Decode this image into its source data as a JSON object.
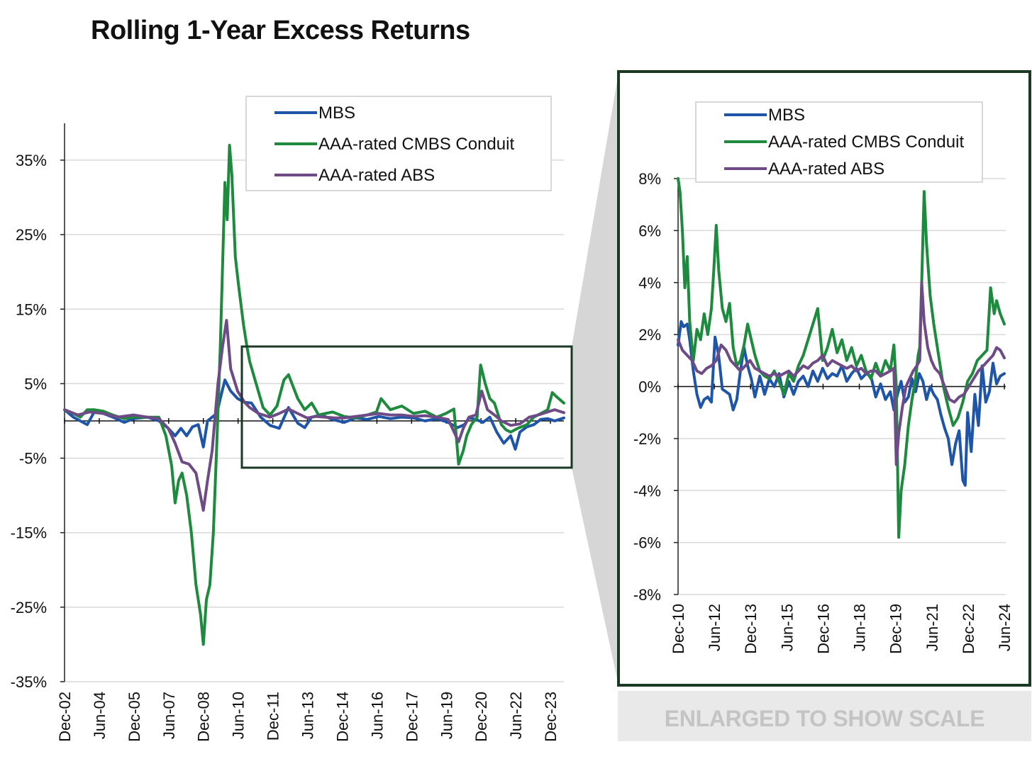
{
  "title": "Rolling 1-Year Excess Returns",
  "caption": "ENLARGED TO SHOW SCALE",
  "colors": {
    "mbs": "#1f55a8",
    "cmbs": "#1d8a3e",
    "abs": "#6e4a86",
    "frame": "#1b3a24",
    "grid": "#d9d9d9",
    "wedge": "#d6d6d6"
  },
  "chart_data": [
    {
      "type": "line",
      "title": "Rolling 1-Year Excess Returns",
      "xlabel": "",
      "ylabel": "",
      "ylim": [
        -35,
        35
      ],
      "y_unit": "%",
      "y_ticks": [
        "35%",
        "25%",
        "15%",
        "5%",
        "-5%",
        "-15%",
        "-25%",
        "-35%"
      ],
      "y_tick_values": [
        35,
        25,
        15,
        5,
        -5,
        -15,
        -25,
        -35
      ],
      "xlim": [
        2002.92,
        2024.5
      ],
      "x_ticks": [
        "Dec-02",
        "Jun-04",
        "Dec-05",
        "Jun-07",
        "Dec-08",
        "Jun-10",
        "Dec-11",
        "Jun-13",
        "Dec-14",
        "Jun-16",
        "Dec-17",
        "Jun-19",
        "Dec-20",
        "Jun-22",
        "Dec-23"
      ],
      "x_tick_values": [
        2002.92,
        2004.42,
        2005.92,
        2007.42,
        2008.92,
        2010.42,
        2011.92,
        2013.42,
        2014.92,
        2016.42,
        2017.92,
        2019.42,
        2020.92,
        2022.42,
        2023.92
      ],
      "legend_position": "top-right",
      "grid": true,
      "series": [
        {
          "name": "MBS",
          "x": [
            2002.92,
            2003.3,
            2003.6,
            2003.9,
            2004.2,
            2004.6,
            2005.0,
            2005.5,
            2005.9,
            2006.5,
            2007.0,
            2007.4,
            2007.7,
            2007.95,
            2008.2,
            2008.45,
            2008.7,
            2008.92,
            2009.1,
            2009.3,
            2009.5,
            2009.65,
            2009.85,
            2010.1,
            2010.4,
            2010.7,
            2011.0,
            2011.4,
            2011.8,
            2012.2,
            2012.6,
            2013.0,
            2013.3,
            2013.6,
            2014.0,
            2014.5,
            2015.0,
            2015.5,
            2016.0,
            2016.5,
            2017.0,
            2017.5,
            2018.0,
            2018.5,
            2019.0,
            2019.5,
            2019.9,
            2020.2,
            2020.4,
            2020.7,
            2021.0,
            2021.3,
            2021.6,
            2021.9,
            2022.2,
            2022.4,
            2022.6,
            2022.9,
            2023.2,
            2023.5,
            2023.8,
            2024.1,
            2024.5
          ],
          "values": [
            1.5,
            0.5,
            0.0,
            -0.5,
            1.2,
            1.0,
            0.5,
            -0.2,
            0.3,
            0.5,
            0.0,
            -1.0,
            -2.0,
            -1.0,
            -2.0,
            -0.8,
            -0.5,
            -3.5,
            0.0,
            0.5,
            1.0,
            3.0,
            5.5,
            4.0,
            3.0,
            2.5,
            2.4,
            0.5,
            -0.6,
            -1.0,
            1.8,
            -0.3,
            -0.9,
            0.5,
            0.8,
            0.2,
            -0.2,
            0.4,
            0.2,
            0.6,
            0.3,
            0.5,
            0.4,
            0.0,
            0.3,
            -0.2,
            -0.9,
            -0.5,
            0.4,
            0.2,
            -0.2,
            0.5,
            -1.5,
            -3.0,
            -2.0,
            -3.8,
            -1.5,
            -0.8,
            -0.5,
            0.2,
            0.3,
            0.0,
            0.4
          ]
        },
        {
          "name": "AAA-rated CMBS Conduit",
          "x": [
            2002.92,
            2003.3,
            2003.6,
            2003.9,
            2004.2,
            2004.6,
            2005.0,
            2005.5,
            2005.9,
            2006.5,
            2007.0,
            2007.3,
            2007.55,
            2007.7,
            2007.85,
            2008.0,
            2008.2,
            2008.4,
            2008.6,
            2008.8,
            2008.92,
            2009.05,
            2009.2,
            2009.35,
            2009.5,
            2009.65,
            2009.85,
            2009.95,
            2010.05,
            2010.15,
            2010.3,
            2010.45,
            2010.65,
            2010.8,
            2010.92,
            2011.2,
            2011.5,
            2011.8,
            2012.1,
            2012.4,
            2012.6,
            2013.0,
            2013.3,
            2013.6,
            2013.9,
            2014.2,
            2014.5,
            2015.0,
            2015.5,
            2016.0,
            2016.4,
            2016.6,
            2017.0,
            2017.5,
            2018.0,
            2018.5,
            2019.0,
            2019.4,
            2019.75,
            2019.95,
            2020.15,
            2020.3,
            2020.5,
            2020.75,
            2020.9,
            2021.1,
            2021.3,
            2021.5,
            2021.8,
            2022.0,
            2022.2,
            2022.5,
            2022.9,
            2023.2,
            2023.5,
            2023.8,
            2024.0,
            2024.2,
            2024.5
          ],
          "values": [
            1.5,
            1.0,
            0.5,
            1.5,
            1.5,
            1.3,
            0.8,
            0.3,
            0.5,
            0.5,
            0.5,
            -2.0,
            -6.0,
            -11.0,
            -8.0,
            -7.0,
            -10.0,
            -15.0,
            -22.0,
            -26.0,
            -30.0,
            -24.0,
            -22.0,
            -15.0,
            -3.0,
            10.0,
            32.0,
            27.0,
            37.0,
            33.0,
            22.0,
            18.0,
            13.0,
            10.0,
            8.0,
            5.0,
            1.8,
            0.8,
            2.0,
            5.5,
            6.2,
            3.0,
            1.5,
            2.4,
            0.8,
            1.0,
            1.2,
            0.6,
            0.4,
            0.8,
            1.2,
            3.0,
            1.5,
            2.0,
            1.0,
            1.3,
            0.5,
            1.0,
            1.6,
            -5.8,
            -4.0,
            -2.0,
            -0.5,
            0.5,
            7.5,
            5.0,
            3.0,
            2.4,
            -0.5,
            -1.2,
            -1.5,
            -1.0,
            -0.5,
            0.5,
            1.0,
            1.5,
            3.8,
            3.2,
            2.4
          ]
        },
        {
          "name": "AAA-rated ABS",
          "x": [
            2002.92,
            2003.5,
            2004.0,
            2004.6,
            2005.2,
            2005.9,
            2006.5,
            2007.0,
            2007.4,
            2007.7,
            2008.0,
            2008.3,
            2008.6,
            2008.92,
            2009.1,
            2009.3,
            2009.55,
            2009.75,
            2009.92,
            2010.1,
            2010.4,
            2010.7,
            2010.92,
            2011.3,
            2011.8,
            2012.2,
            2012.6,
            2013.0,
            2013.4,
            2013.8,
            2014.2,
            2014.6,
            2015.0,
            2015.5,
            2016.0,
            2016.5,
            2017.0,
            2017.5,
            2018.0,
            2018.5,
            2019.0,
            2019.5,
            2019.95,
            2020.15,
            2020.4,
            2020.7,
            2020.95,
            2021.2,
            2021.5,
            2021.8,
            2022.2,
            2022.6,
            2023.0,
            2023.4,
            2023.8,
            2024.1,
            2024.5
          ],
          "values": [
            1.5,
            0.8,
            1.2,
            1.0,
            0.5,
            0.8,
            0.5,
            0.3,
            -1.0,
            -3.0,
            -5.5,
            -5.8,
            -7.0,
            -12.0,
            -8.0,
            -4.0,
            5.0,
            10.0,
            13.5,
            7.0,
            4.0,
            2.5,
            1.8,
            1.0,
            0.5,
            1.0,
            1.6,
            1.0,
            0.4,
            0.6,
            0.5,
            0.4,
            0.4,
            0.6,
            0.8,
            1.0,
            0.8,
            0.8,
            0.6,
            0.7,
            0.5,
            0.2,
            -2.8,
            -1.0,
            0.5,
            0.8,
            4.0,
            1.5,
            0.8,
            0.0,
            -0.6,
            -0.4,
            0.5,
            0.8,
            1.2,
            1.5,
            1.1
          ]
        }
      ]
    },
    {
      "type": "line",
      "title": "",
      "xlabel": "",
      "ylabel": "",
      "ylim": [
        -8,
        8
      ],
      "y_unit": "%",
      "y_ticks": [
        "8%",
        "6%",
        "4%",
        "2%",
        "0%",
        "-2%",
        "-4%",
        "-6%",
        "-8%"
      ],
      "y_tick_values": [
        8,
        6,
        4,
        2,
        0,
        -2,
        -4,
        -6,
        -8
      ],
      "xlim": [
        2010.92,
        2024.42
      ],
      "x_ticks": [
        "Dec-10",
        "Jun-12",
        "Dec-13",
        "Jun-15",
        "Dec-16",
        "Jun-18",
        "Dec-19",
        "Jun-21",
        "Dec-22",
        "Jun-24"
      ],
      "x_tick_values": [
        2010.92,
        2012.42,
        2013.92,
        2015.42,
        2016.92,
        2018.42,
        2019.92,
        2021.42,
        2022.92,
        2024.42
      ],
      "legend_position": "top-right",
      "grid": true,
      "series": [
        {
          "name": "MBS",
          "x": [
            2010.92,
            2011.05,
            2011.15,
            2011.3,
            2011.4,
            2011.55,
            2011.7,
            2011.85,
            2012.0,
            2012.15,
            2012.3,
            2012.45,
            2012.6,
            2012.75,
            2012.9,
            2013.05,
            2013.2,
            2013.35,
            2013.5,
            2013.65,
            2013.8,
            2013.95,
            2014.1,
            2014.3,
            2014.5,
            2014.7,
            2014.9,
            2015.1,
            2015.3,
            2015.5,
            2015.7,
            2015.9,
            2016.1,
            2016.3,
            2016.5,
            2016.7,
            2016.9,
            2017.1,
            2017.3,
            2017.5,
            2017.7,
            2017.9,
            2018.1,
            2018.3,
            2018.5,
            2018.7,
            2018.9,
            2019.1,
            2019.3,
            2019.5,
            2019.7,
            2019.85,
            2020.0,
            2020.15,
            2020.3,
            2020.45,
            2020.6,
            2020.75,
            2020.9,
            2021.05,
            2021.2,
            2021.35,
            2021.5,
            2021.65,
            2021.8,
            2021.95,
            2022.1,
            2022.25,
            2022.4,
            2022.55,
            2022.7,
            2022.8,
            2022.9,
            2023.05,
            2023.2,
            2023.35,
            2023.5,
            2023.65,
            2023.8,
            2023.95,
            2024.1,
            2024.25,
            2024.42
          ],
          "values": [
            1.6,
            2.5,
            2.3,
            2.4,
            1.8,
            0.6,
            -0.3,
            -0.8,
            -0.5,
            -0.4,
            -0.6,
            1.9,
            1.2,
            -0.1,
            -0.2,
            -0.3,
            -0.9,
            -0.5,
            0.6,
            1.5,
            0.8,
            0.3,
            -0.4,
            0.4,
            -0.3,
            0.3,
            0.0,
            0.5,
            -0.4,
            0.2,
            -0.3,
            0.2,
            0.4,
            0.0,
            0.6,
            0.2,
            0.7,
            0.3,
            0.5,
            0.4,
            0.8,
            0.2,
            0.5,
            0.7,
            0.3,
            0.5,
            0.4,
            -0.4,
            0.1,
            -0.5,
            -0.2,
            -0.9,
            -0.3,
            0.2,
            -0.6,
            -0.4,
            0.3,
            -0.2,
            0.5,
            0.2,
            -0.5,
            0.0,
            -0.3,
            -0.5,
            -1.1,
            -1.6,
            -2.0,
            -3.0,
            -2.2,
            -1.7,
            -3.6,
            -3.8,
            -1.0,
            -2.5,
            -0.3,
            -1.5,
            0.8,
            -0.6,
            -0.2,
            0.9,
            0.1,
            0.4,
            0.5
          ]
        },
        {
          "name": "AAA-rated CMBS Conduit",
          "x": [
            2010.92,
            2011.0,
            2011.1,
            2011.2,
            2011.3,
            2011.4,
            2011.55,
            2011.7,
            2011.85,
            2012.0,
            2012.15,
            2012.3,
            2012.4,
            2012.5,
            2012.6,
            2012.75,
            2012.9,
            2013.05,
            2013.2,
            2013.35,
            2013.5,
            2013.65,
            2013.8,
            2013.95,
            2014.1,
            2014.3,
            2014.5,
            2014.7,
            2014.9,
            2015.1,
            2015.3,
            2015.5,
            2015.7,
            2015.9,
            2016.1,
            2016.3,
            2016.5,
            2016.7,
            2016.9,
            2017.1,
            2017.3,
            2017.5,
            2017.7,
            2017.9,
            2018.1,
            2018.3,
            2018.5,
            2018.7,
            2018.9,
            2019.1,
            2019.3,
            2019.5,
            2019.7,
            2019.85,
            2019.95,
            2020.05,
            2020.15,
            2020.3,
            2020.45,
            2020.6,
            2020.75,
            2020.85,
            2020.92,
            2021.0,
            2021.1,
            2021.2,
            2021.35,
            2021.5,
            2021.7,
            2021.9,
            2022.1,
            2022.3,
            2022.5,
            2022.7,
            2022.9,
            2023.1,
            2023.3,
            2023.5,
            2023.7,
            2023.85,
            2024.0,
            2024.1,
            2024.25,
            2024.42
          ],
          "values": [
            8.0,
            7.5,
            6.0,
            3.8,
            5.0,
            2.5,
            1.0,
            2.2,
            1.8,
            2.8,
            2.0,
            3.0,
            4.5,
            6.2,
            4.5,
            3.0,
            2.5,
            3.2,
            1.5,
            0.8,
            1.0,
            1.6,
            2.4,
            1.8,
            1.2,
            0.6,
            0.4,
            0.3,
            0.6,
            0.2,
            -0.3,
            0.5,
            0.2,
            0.8,
            1.2,
            1.8,
            2.4,
            3.0,
            1.0,
            1.5,
            2.2,
            1.3,
            1.8,
            1.0,
            1.5,
            0.8,
            1.2,
            0.6,
            0.3,
            0.9,
            0.4,
            1.0,
            0.6,
            1.6,
            0.0,
            -5.8,
            -4.0,
            -3.0,
            -1.5,
            -0.5,
            0.3,
            1.2,
            1.5,
            4.0,
            7.5,
            5.5,
            3.5,
            2.4,
            1.2,
            0.0,
            -0.8,
            -1.5,
            -1.2,
            -0.6,
            0.2,
            0.5,
            1.0,
            1.2,
            1.4,
            3.8,
            2.8,
            3.3,
            2.8,
            2.4
          ]
        },
        {
          "name": "AAA-rated ABS",
          "x": [
            2010.92,
            2011.1,
            2011.3,
            2011.5,
            2011.7,
            2011.9,
            2012.1,
            2012.3,
            2012.5,
            2012.7,
            2012.9,
            2013.1,
            2013.3,
            2013.5,
            2013.7,
            2013.9,
            2014.1,
            2014.3,
            2014.5,
            2014.7,
            2014.9,
            2015.1,
            2015.3,
            2015.5,
            2015.7,
            2015.9,
            2016.1,
            2016.3,
            2016.5,
            2016.7,
            2016.9,
            2017.1,
            2017.3,
            2017.5,
            2017.7,
            2017.9,
            2018.1,
            2018.3,
            2018.5,
            2018.7,
            2018.9,
            2019.1,
            2019.3,
            2019.5,
            2019.7,
            2019.85,
            2019.95,
            2020.05,
            2020.2,
            2020.35,
            2020.5,
            2020.65,
            2020.8,
            2020.92,
            2021.0,
            2021.1,
            2021.25,
            2021.4,
            2021.55,
            2021.75,
            2021.95,
            2022.15,
            2022.35,
            2022.55,
            2022.75,
            2022.95,
            2023.15,
            2023.35,
            2023.55,
            2023.75,
            2023.95,
            2024.1,
            2024.25,
            2024.42
          ],
          "values": [
            1.8,
            1.4,
            1.2,
            1.0,
            0.6,
            0.5,
            0.7,
            0.8,
            1.0,
            1.6,
            1.4,
            1.0,
            0.8,
            0.6,
            0.8,
            1.0,
            0.7,
            0.6,
            0.5,
            0.4,
            0.5,
            0.4,
            0.5,
            0.6,
            0.4,
            0.6,
            0.8,
            0.7,
            0.9,
            1.0,
            1.2,
            0.8,
            1.0,
            0.9,
            0.8,
            0.7,
            0.8,
            0.6,
            0.7,
            0.5,
            0.6,
            0.6,
            0.4,
            0.5,
            0.6,
            0.7,
            -3.0,
            -1.8,
            -0.8,
            0.0,
            0.3,
            0.6,
            0.8,
            1.0,
            4.0,
            2.5,
            1.5,
            1.0,
            0.7,
            0.5,
            0.0,
            -0.5,
            -0.6,
            -0.4,
            -0.3,
            0.0,
            0.3,
            0.6,
            0.8,
            1.0,
            1.2,
            1.5,
            1.4,
            1.1
          ]
        }
      ]
    }
  ]
}
